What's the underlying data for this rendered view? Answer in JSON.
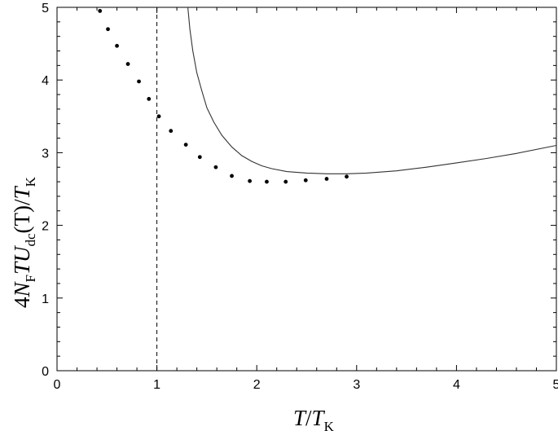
{
  "chart_data": {
    "type": "scatter",
    "xlim": [
      0,
      5
    ],
    "ylim": [
      0,
      5
    ],
    "x_ticks": [
      0,
      1,
      2,
      3,
      4,
      5
    ],
    "y_ticks": [
      0,
      1,
      2,
      3,
      4,
      5
    ],
    "x_tick_labels": [
      "0",
      "1",
      "2",
      "3",
      "4",
      "5"
    ],
    "y_tick_labels": [
      "0",
      "1",
      "2",
      "3",
      "4",
      "5"
    ],
    "xlabel": "T/TK",
    "ylabel": "4NFTUdc(T)/TK",
    "grid": false,
    "series": [
      {
        "kind": "points",
        "x": [
          0.43,
          0.51,
          0.6,
          0.71,
          0.82,
          0.92,
          1.02,
          1.14,
          1.29,
          1.43,
          1.59,
          1.75,
          1.93,
          2.1,
          2.29,
          2.49,
          2.7,
          2.9
        ],
        "y": [
          4.95,
          4.7,
          4.47,
          4.22,
          3.98,
          3.74,
          3.5,
          3.3,
          3.11,
          2.94,
          2.8,
          2.68,
          2.61,
          2.6,
          2.6,
          2.62,
          2.64,
          2.67
        ]
      },
      {
        "kind": "curve",
        "x": [
          1.31,
          1.33,
          1.36,
          1.4,
          1.45,
          1.5,
          1.57,
          1.65,
          1.75,
          1.85,
          1.95,
          2.05,
          2.15,
          2.3,
          2.5,
          2.7,
          2.9,
          3.1,
          3.4,
          3.7,
          4.0,
          4.3,
          4.6,
          5.0
        ],
        "y": [
          5.0,
          4.7,
          4.4,
          4.1,
          3.85,
          3.62,
          3.42,
          3.24,
          3.08,
          2.96,
          2.88,
          2.82,
          2.78,
          2.74,
          2.72,
          2.71,
          2.71,
          2.72,
          2.75,
          2.8,
          2.86,
          2.92,
          2.99,
          3.1
        ]
      }
    ],
    "reference_lines": [
      {
        "orientation": "vertical",
        "x": 1.0,
        "style": "dashed"
      }
    ]
  },
  "axis_title_parts": {
    "x": {
      "num": "T",
      "sep": "/",
      "den": "T",
      "den_sub": "K"
    },
    "y": {
      "c1": "4",
      "n": "N",
      "n_sub": "F",
      "t": "T",
      "u": "U",
      "u_sub": "dc",
      "paren": "(T)",
      "sep": "/",
      "den": "T",
      "den_sub": "K"
    }
  }
}
